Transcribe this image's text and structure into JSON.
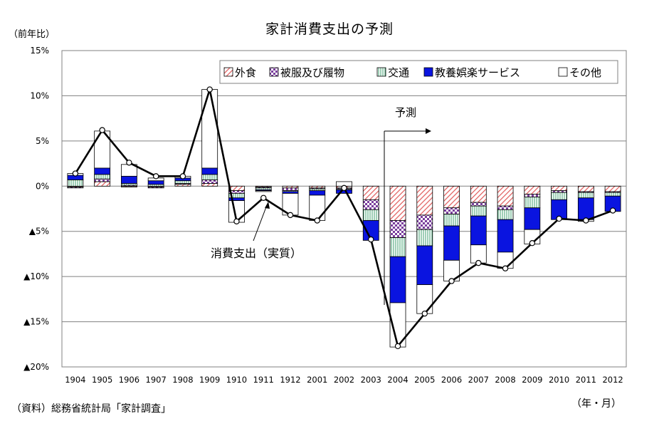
{
  "title": "家計消費支出の予測",
  "unit_label": "（前年比）",
  "x_unit_label": "（年・月）",
  "source": "（資料）総務省統計局「家計調査」",
  "annotations": {
    "forecast": "予測",
    "line_label": "消費支出（実質）"
  },
  "colors": {
    "eating_out": "#e05a5a",
    "clothing": "#7a3e9d",
    "transport": "#3f9f6f",
    "culture": "#0a14e0",
    "other": "#ffffff",
    "line": "#000000"
  },
  "chart_data": {
    "type": "bar",
    "stacked": true,
    "title": "家計消費支出の予測",
    "ylabel": "（前年比）",
    "xlabel": "（年・月）",
    "ylim": [
      -20,
      15
    ],
    "y_ticks": [
      {
        "value": 15,
        "label": "15%"
      },
      {
        "value": 10,
        "label": "10%"
      },
      {
        "value": 5,
        "label": "5%"
      },
      {
        "value": 0,
        "label": "0%"
      },
      {
        "value": -5,
        "label": "▲5%"
      },
      {
        "value": -10,
        "label": "▲10%"
      },
      {
        "value": -15,
        "label": "▲15%"
      },
      {
        "value": -20,
        "label": "▲20%"
      }
    ],
    "categories": [
      "1904",
      "1905",
      "1906",
      "1907",
      "1908",
      "1909",
      "1910",
      "1911",
      "1912",
      "2001",
      "2002",
      "2003",
      "2004",
      "2005",
      "2006",
      "2007",
      "2008",
      "2009",
      "2010",
      "2011",
      "2012"
    ],
    "legend_position": "top-right",
    "grid": true,
    "forecast_start": "2004",
    "series": [
      {
        "name": "外食",
        "key": "eating_out",
        "values": [
          -0.1,
          0.5,
          -0.1,
          -0.1,
          0.2,
          0.3,
          -0.5,
          -0.1,
          -0.2,
          -0.2,
          -0.2,
          -1.5,
          -3.8,
          -3.2,
          -2.4,
          -1.8,
          -2.2,
          -0.9,
          -0.5,
          -0.6,
          -0.6
        ]
      },
      {
        "name": "被服及び履物",
        "key": "clothing",
        "values": [
          -0.1,
          0.3,
          0.1,
          -0.1,
          0.1,
          0.4,
          -0.3,
          -0.1,
          -0.3,
          -0.1,
          -0.1,
          -1.1,
          -1.9,
          -1.6,
          -0.7,
          -0.4,
          -0.4,
          -0.3,
          -0.2,
          -0.1,
          -0.1
        ]
      },
      {
        "name": "交通",
        "key": "transport",
        "values": [
          0.7,
          0.5,
          0.2,
          0.2,
          0.3,
          0.6,
          -0.5,
          -0.2,
          -0.1,
          -0.2,
          -0.1,
          -1.2,
          -2.1,
          -1.8,
          -1.3,
          -1.1,
          -1.1,
          -1.2,
          -0.8,
          -0.6,
          -0.4
        ]
      },
      {
        "name": "教養娯楽サービス",
        "key": "culture",
        "values": [
          0.5,
          0.7,
          0.8,
          0.4,
          0.3,
          0.7,
          -0.3,
          -0.1,
          -0.2,
          -0.5,
          -0.4,
          -2.2,
          -5.1,
          -4.3,
          -3.8,
          -3.2,
          -3.6,
          -2.4,
          -2.2,
          -2.4,
          -1.7
        ]
      },
      {
        "name": "その他",
        "key": "other",
        "values": [
          0.2,
          4.1,
          1.3,
          0.3,
          0.2,
          8.7,
          -2.4,
          -0.1,
          -2.4,
          -2.8,
          0.5,
          0,
          -4.9,
          -3.2,
          -2.3,
          -2.0,
          -1.8,
          -1.6,
          0,
          -0.2,
          0
        ]
      }
    ],
    "line": {
      "name": "消費支出（実質）",
      "values": [
        1.4,
        6.2,
        2.6,
        1.1,
        1.1,
        10.7,
        -3.9,
        -1.3,
        -3.2,
        -3.8,
        -0.2,
        -5.9,
        -17.7,
        -14.1,
        -10.5,
        -8.5,
        -9.1,
        -6.3,
        -3.6,
        -3.8,
        -2.7
      ]
    }
  }
}
